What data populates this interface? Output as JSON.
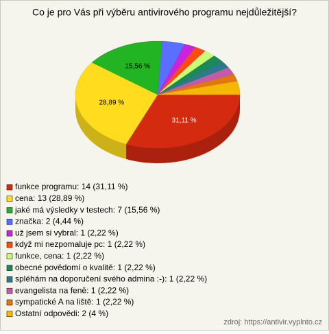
{
  "chart_data": {
    "type": "pie",
    "title": "Co je pro Vás při výběru antivirového programu nejdůležitější?",
    "categories": [
      "funkce programu: 14 (31,11 %)",
      "cena: 13 (28,89 %)",
      "jaké má výsledky v testech: 7 (15,56 %)",
      "značka: 2 (4,44 %)",
      "už jsem si vybral: 1 (2,22 %)",
      "když mi nezpomaluje pc: 1 (2,22 %)",
      "funkce, cena: 1 (2,22 %)",
      "obecné povědomí o kvalitě: 1 (2,22 %)",
      "spléhám na doporučení svého admina :-): 1 (2,22 %)",
      "evangelista na feně: 1 (2,22 %)",
      "sympatické A na liště: 1 (2,22 %)",
      "Ostatní odpovědi: 2 (4 %)"
    ],
    "values": [
      31.11,
      28.89,
      15.56,
      4.44,
      2.22,
      2.22,
      2.22,
      2.22,
      2.22,
      2.22,
      2.22,
      4
    ],
    "value_labels": [
      "31,11 %",
      "28,89 %",
      "15,56 %",
      null,
      null,
      null,
      null,
      null,
      null,
      null,
      null,
      null
    ],
    "colors": [
      "#d42a10",
      "#ffdd1e",
      "#22b422",
      "#5a6eff",
      "#cc22dd",
      "#ff4a10",
      "#c8ff78",
      "#1a8a5a",
      "#2c7a8a",
      "#c45aa8",
      "#e07810",
      "#f5b800"
    ],
    "source": "zdroj: https://antivir.vyplnto.cz"
  }
}
